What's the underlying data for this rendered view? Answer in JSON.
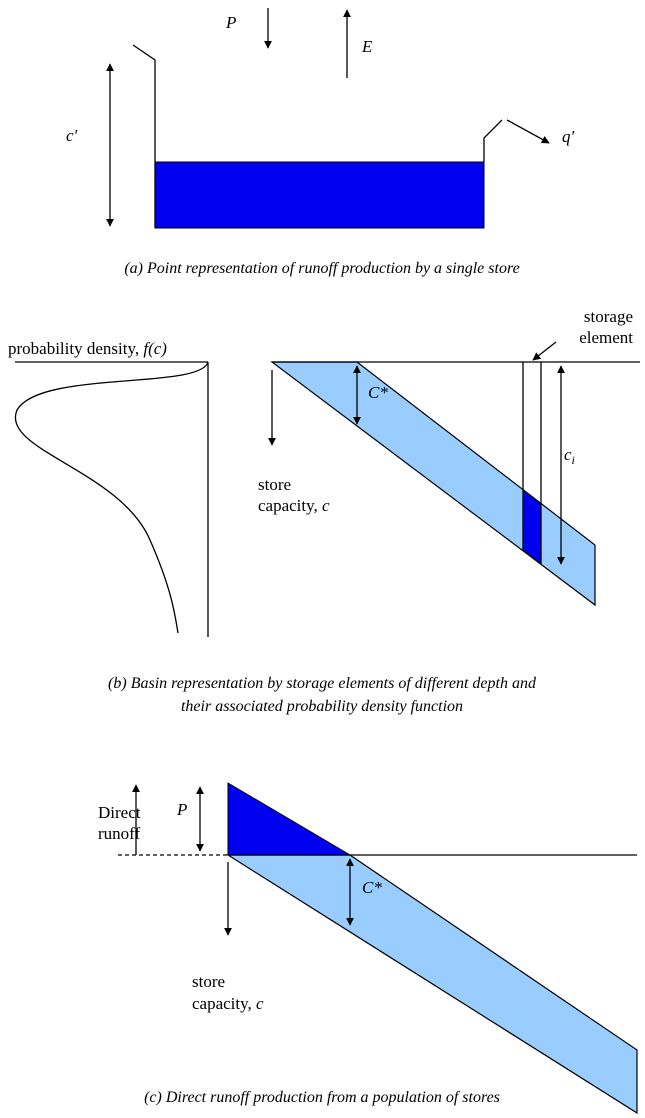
{
  "panel_a": {
    "labels": {
      "rain": "P",
      "evap": "E",
      "capacity": "c′",
      "outflow": "q′"
    },
    "caption": "(a) Point representation of runoff production by a single store"
  },
  "panel_b": {
    "density_label": "probability density,",
    "density_symbol": "f(c)",
    "element_label": [
      "storage",
      "element"
    ],
    "threshold": "C*",
    "depth_symbol": "c",
    "depth_subscript": "i",
    "axis_label": [
      "store",
      "capacity,"
    ],
    "axis_symbol": "c",
    "caption": [
      "(b) Basin representation by storage elements of different depth and",
      "their associated probability density function"
    ]
  },
  "panel_c": {
    "runoff_label": [
      "Direct",
      "runoff"
    ],
    "rain": "P",
    "threshold": "C*",
    "axis_label": [
      "store",
      "capacity,"
    ],
    "axis_symbol": "c",
    "caption": "(c) Direct runoff production from a population of stores"
  }
}
